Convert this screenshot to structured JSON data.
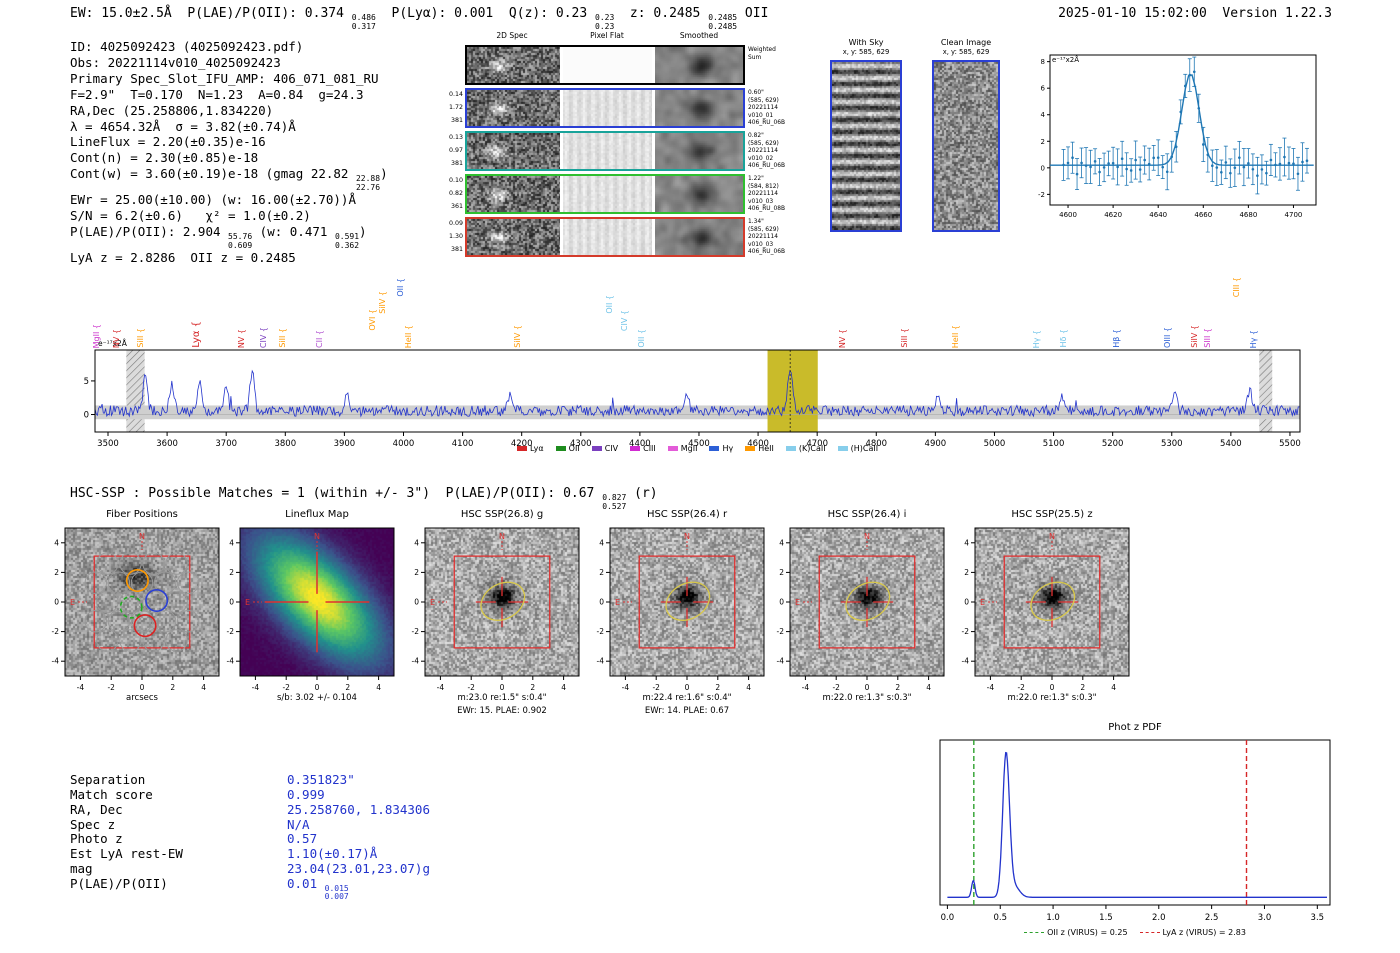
{
  "header": {
    "left_segments": [
      {
        "t": "EW: 15.0±2.5Å  P(LAE)/P(OII): 0.374 "
      },
      {
        "frac": [
          "0.486",
          "0.317"
        ]
      },
      {
        "t": "  P(Lyα): 0.001  Q(z): 0.23 "
      },
      {
        "frac": [
          "0.23",
          "0.23"
        ]
      },
      {
        "t": "  z: 0.2485 "
      },
      {
        "frac": [
          "0.2485",
          "0.2485"
        ]
      },
      {
        "t": " OII"
      }
    ],
    "right": "2025-01-10 15:02:00  Version 1.22.3"
  },
  "info_lines": [
    [
      {
        "t": "ID: 4025092423 (4025092423.pdf)"
      }
    ],
    [
      {
        "t": "Obs: 20221114v010_4025092423"
      }
    ],
    [
      {
        "t": "Primary Spec_Slot_IFU_AMP: 406_071_081_RU"
      }
    ],
    [
      {
        "t": "F=2.9\"  T=0.170  N=1.23  A=0.84  g=24.3"
      }
    ],
    [
      {
        "t": "RA,Dec (25.258806,1.834220)"
      }
    ],
    [
      {
        "t": "λ = 4654.32Å  σ = 3.82(±0.74)Å"
      }
    ],
    [
      {
        "t": "LineFlux = 2.20(±0.35)e-16"
      }
    ],
    [
      {
        "t": "Cont(n) = 2.30(±0.85)e-18"
      }
    ],
    [
      {
        "t": "Cont(w) = 3.60(±0.19)e-18 (gmag 22.82 "
      },
      {
        "frac": [
          "22.88",
          "22.76"
        ]
      },
      {
        "t": ")"
      }
    ],
    [
      {
        "t": "EWr = 25.00(±10.00) (w: 16.00(±2.70))Å"
      }
    ],
    [
      {
        "t": "S/N = 6.2(±0.6)   χ² = 1.0(±0.2)"
      }
    ],
    [
      {
        "t": "P(LAE)/P(OII): 2.904 "
      },
      {
        "frac": [
          "55.76",
          "0.609"
        ]
      },
      {
        "t": " (w: 0.471 "
      },
      {
        "frac": [
          "0.591",
          "0.362"
        ]
      },
      {
        "t": ")"
      }
    ],
    [
      {
        "t": "LyA z = 2.8286  OII z = 0.2485"
      }
    ]
  ],
  "spec2d": {
    "col_headers": [
      "2D Spec",
      "Pixel Flat",
      "Smoothed"
    ],
    "weighted": {
      "border": "#000000",
      "right": [
        "Weighted",
        "Sum"
      ]
    },
    "rows": [
      {
        "border": "#2a3fd4",
        "left": [
          "0.14",
          "1.72",
          "381"
        ],
        "right": [
          "0.60\"",
          "(585, 629)",
          "20221114",
          "v010_01",
          "406_RU_06B"
        ]
      },
      {
        "border": "#18a39a",
        "left": [
          "0.13",
          "0.97",
          "381"
        ],
        "right": [
          "0.82\"",
          "(585, 629)",
          "20221114",
          "v010_02",
          "406_RU_06B"
        ]
      },
      {
        "border": "#2fbf2f",
        "left": [
          "0.10",
          "0.82",
          "361"
        ],
        "right": [
          "1.22\"",
          "(584, 812)",
          "20221114",
          "v010_03",
          "406_RU_08B"
        ]
      },
      {
        "border": "#d43a2a",
        "left": [
          "0.09",
          "1.30",
          "381"
        ],
        "right": [
          "1.34\"",
          "(585, 629)",
          "20221114",
          "v010_03",
          "406_RU_06B"
        ]
      }
    ]
  },
  "sky_panels": {
    "with_sky": {
      "title": "With Sky",
      "subtitle": "x, y: 585, 629"
    },
    "clean": {
      "title": "Clean Image",
      "subtitle": "x, y: 585, 629"
    }
  },
  "hsc_line_segments": [
    {
      "t": "HSC-SSP : Possible Matches = 1 (within +/- 3\")  P(LAE)/P(OII): 0.67 "
    },
    {
      "frac": [
        "0.827",
        "0.527"
      ]
    },
    {
      "t": " (r)"
    }
  ],
  "cutouts": [
    {
      "title": "Fiber Positions",
      "type": "fibers",
      "captions": [
        "arcsecs"
      ]
    },
    {
      "title": "Lineflux Map",
      "type": "lineflux",
      "captions": [
        "s/b: 3.02 +/- 0.104"
      ]
    },
    {
      "title": "HSC SSP(26.8) g",
      "type": "hsc",
      "captions": [
        "m:23.0 re:1.5\" s:0.4\"",
        "EWr: 15. PLAE: 0.902"
      ]
    },
    {
      "title": "HSC SSP(26.4) r",
      "type": "hsc",
      "captions": [
        "m:22.4 re:1.6\" s:0.4\"",
        "EWr: 14. PLAE: 0.67"
      ]
    },
    {
      "title": "HSC SSP(26.4) i",
      "type": "hsc",
      "captions": [
        "m:22.0 re:1.3\" s:0.3\""
      ]
    },
    {
      "title": "HSC SSP(25.5) z",
      "type": "hsc",
      "captions": [
        "m:22.0 re:1.3\" s:0.3\""
      ]
    }
  ],
  "match_table": {
    "rows": [
      {
        "label": "Separation",
        "segments": [
          {
            "t": "0.351823\""
          }
        ]
      },
      {
        "label": "Match score",
        "segments": [
          {
            "t": "0.999"
          }
        ]
      },
      {
        "label": "RA, Dec",
        "segments": [
          {
            "t": "25.258760, 1.834306"
          }
        ]
      },
      {
        "label": "Spec z",
        "segments": [
          {
            "t": "N/A"
          }
        ]
      },
      {
        "label": "Photo z",
        "segments": [
          {
            "t": "0.57"
          }
        ]
      },
      {
        "label": "Est LyA rest-EW",
        "segments": [
          {
            "t": "1.10(±0.17)Å"
          }
        ]
      },
      {
        "label": "mag",
        "segments": [
          {
            "t": "23.04(23.01,23.07)g"
          }
        ]
      },
      {
        "label": "P(LAE)/P(OII)",
        "segments": [
          {
            "t": "0.01 "
          },
          {
            "frac": [
              "0.015",
              "0.007"
            ]
          }
        ]
      }
    ]
  },
  "chart_data": [
    {
      "id": "line_fit_inset",
      "type": "scatter+line",
      "ylabel": "e⁻¹⁷x2Å",
      "xlim": [
        4592,
        4710
      ],
      "ylim": [
        -2.8,
        8.5
      ],
      "xticks": [
        4600,
        4620,
        4640,
        4660,
        4680,
        4700
      ],
      "yticks": [
        -2,
        0,
        2,
        4,
        6,
        8
      ],
      "fit": {
        "center": 4654.32,
        "sigma": 3.82,
        "amplitude": 6.9,
        "baseline": 0.2
      },
      "points": {
        "seed": 11,
        "step": 2,
        "noise": 0.8,
        "err_base": 0.85,
        "err_var": 0.6
      },
      "color": "#1f77b4"
    },
    {
      "id": "full_spectrum",
      "type": "line",
      "ylabel": "e⁻¹⁷x2Å",
      "xlim": [
        3478,
        5517
      ],
      "ylim": [
        -2.6,
        9.6
      ],
      "xticks": [
        3500,
        3600,
        3700,
        3800,
        3900,
        4000,
        4100,
        4200,
        4300,
        4400,
        4500,
        4600,
        4700,
        4800,
        4900,
        5000,
        5100,
        5200,
        5300,
        5400,
        5500
      ],
      "yticks": [
        0,
        5
      ],
      "line_color": "#2233cc",
      "continuum": 0.55,
      "noise": {
        "seed": 5,
        "level": 0.8
      },
      "peak": {
        "center": 4654.32,
        "sigma": 3.82,
        "amplitude": 6.3
      },
      "error_band": [
        -0.7,
        1.35
      ],
      "highlight_band": {
        "range": [
          4616,
          4701
        ],
        "color": "#c6b71f"
      },
      "marker_line": 4654.32,
      "masked_bands": [
        [
          3531,
          3562
        ],
        [
          5448,
          5470
        ]
      ],
      "spikes": [
        {
          "wave": 3563,
          "amp": 6.0
        },
        {
          "wave": 3608,
          "amp": 4.2
        },
        {
          "wave": 3655,
          "amp": 4.8
        },
        {
          "wave": 3700,
          "amp": 4.0
        },
        {
          "wave": 3744,
          "amp": 6.2
        },
        {
          "wave": 3905,
          "amp": 2.6
        },
        {
          "wave": 4180,
          "amp": 2.2
        },
        {
          "wave": 4480,
          "amp": 2.4
        },
        {
          "wave": 4905,
          "amp": 2.6
        },
        {
          "wave": 5115,
          "amp": 2.2
        },
        {
          "wave": 5305,
          "amp": 2.6
        },
        {
          "wave": 5432,
          "amp": 3.0
        }
      ],
      "emission_labels": [
        {
          "name": "MgII",
          "wave": 3483,
          "color": "#cc33cc",
          "lift": 0
        },
        {
          "name": "NV",
          "wave": 3516,
          "color": "#d62728",
          "lift": 0
        },
        {
          "name": "SiII",
          "wave": 3556,
          "color": "#ff9900",
          "lift": 0
        },
        {
          "name": "Lyα",
          "wave": 3652,
          "color": "#d62728",
          "lift": 0,
          "big": true
        },
        {
          "name": "NV",
          "wave": 3727,
          "color": "#d62728",
          "lift": 0
        },
        {
          "name": "CIV",
          "wave": 3764,
          "color": "#7a3fbf",
          "lift": 0
        },
        {
          "name": "SiII",
          "wave": 3797,
          "color": "#ff9900",
          "lift": 0
        },
        {
          "name": "CII",
          "wave": 3860,
          "color": "#b04fd0",
          "lift": 0
        },
        {
          "name": "OVI",
          "wave": 3950,
          "color": "#ff9900",
          "lift": 1
        },
        {
          "name": "SiIV",
          "wave": 3966,
          "color": "#ff9900",
          "lift": 2
        },
        {
          "name": "OII",
          "wave": 3996,
          "color": "#2c5fd6",
          "lift": 3
        },
        {
          "name": "HeII",
          "wave": 4010,
          "color": "#ff9900",
          "lift": 0
        },
        {
          "name": "SiIV",
          "wave": 4195,
          "color": "#ff9900",
          "lift": 0
        },
        {
          "name": "OII",
          "wave": 4350,
          "color": "#6fc3e8",
          "lift": 2
        },
        {
          "name": "CIV",
          "wave": 4376,
          "color": "#6fc3e8",
          "lift": 1
        },
        {
          "name": "OII",
          "wave": 4404,
          "color": "#6fc3e8",
          "lift": 0
        },
        {
          "name": "NV",
          "wave": 4745,
          "color": "#d62728",
          "lift": 0
        },
        {
          "name": "SiII",
          "wave": 4850,
          "color": "#d62728",
          "lift": 0
        },
        {
          "name": "HeII",
          "wave": 4935,
          "color": "#ff9900",
          "lift": 0
        },
        {
          "name": "Hγ",
          "wave": 5072,
          "color": "#6fc3e8",
          "lift": 0
        },
        {
          "name": "Hδ",
          "wave": 5118,
          "color": "#6fc3e8",
          "lift": 0
        },
        {
          "name": "Hβ",
          "wave": 5208,
          "color": "#2c5fd6",
          "lift": 0
        },
        {
          "name": "OIII",
          "wave": 5295,
          "color": "#2c5fd6",
          "lift": 0
        },
        {
          "name": "SiIV",
          "wave": 5340,
          "color": "#d62728",
          "lift": 0
        },
        {
          "name": "SIII",
          "wave": 5362,
          "color": "#cc33cc",
          "lift": 0
        },
        {
          "name": "CIII",
          "wave": 5412,
          "color": "#ff9900",
          "lift": 3
        },
        {
          "name": "Hγ",
          "wave": 5440,
          "color": "#2c5fd6",
          "lift": 0
        }
      ],
      "legend": [
        {
          "label": "Lyα",
          "color": "#d62728"
        },
        {
          "label": "OII",
          "color": "#1e8c1e"
        },
        {
          "label": "CIV",
          "color": "#7a3fbf"
        },
        {
          "label": "CIII",
          "color": "#d12bd1"
        },
        {
          "label": "MgII",
          "color": "#e35bd8"
        },
        {
          "label": "Hγ",
          "color": "#2c5fd6"
        },
        {
          "label": "HeII",
          "color": "#ff9900"
        },
        {
          "label": "(K)CaII",
          "color": "#87ceeb"
        },
        {
          "label": "(H)CaII",
          "color": "#87ceeb"
        }
      ]
    },
    {
      "id": "photz_pdf",
      "type": "line",
      "title": "Phot z PDF",
      "xlim": [
        -0.07,
        3.62
      ],
      "xticks": [
        0.0,
        0.5,
        1.0,
        1.5,
        2.0,
        2.5,
        3.0,
        3.5
      ],
      "line_color": "#2233cc",
      "curve": {
        "baseline": 0.012,
        "peaks": [
          {
            "center": 0.555,
            "sigma": 0.032,
            "amp": 1.0
          },
          {
            "center": 0.245,
            "sigma": 0.016,
            "amp": 0.12
          },
          {
            "center": 0.63,
            "sigma": 0.05,
            "amp": 0.08
          }
        ]
      },
      "vlines": [
        {
          "x": 0.25,
          "color": "#2ca02c",
          "label": "OII z (VIRUS) = 0.25"
        },
        {
          "x": 2.83,
          "color": "#d62728",
          "label": "LyA z (VIRUS) = 2.83"
        }
      ]
    }
  ]
}
